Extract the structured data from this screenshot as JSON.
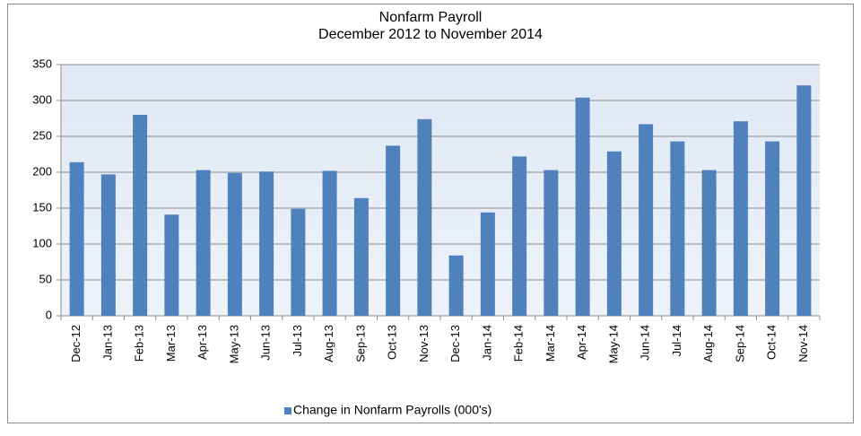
{
  "chart_data": {
    "type": "bar",
    "title": "Nonfarm Payroll",
    "subtitle": "December 2012  to  November  2014",
    "categories": [
      "Dec-12",
      "Jan-13",
      "Feb-13",
      "Mar-13",
      "Apr-13",
      "May-13",
      "Jun-13",
      "Jul-13",
      "Aug-13",
      "Sep-13",
      "Oct-13",
      "Nov-13",
      "Dec-13",
      "Jan-14",
      "Feb-14",
      "Mar-14",
      "Apr-14",
      "May-14",
      "Jun-14",
      "Jul-14",
      "Aug-14",
      "Sep-14",
      "Oct-14",
      "Nov-14"
    ],
    "series": [
      {
        "name": "Change in  Nonfarm Payrolls (000's)",
        "color": "#4f81bd",
        "values": [
          214,
          197,
          280,
          141,
          203,
          199,
          201,
          149,
          202,
          164,
          237,
          274,
          84,
          144,
          222,
          203,
          304,
          229,
          267,
          243,
          203,
          271,
          243,
          321
        ]
      }
    ],
    "ylim": [
      0,
      350
    ],
    "yticks": [
      0,
      50,
      100,
      150,
      200,
      250,
      300,
      350
    ],
    "grid": true,
    "legend": "bottom"
  }
}
